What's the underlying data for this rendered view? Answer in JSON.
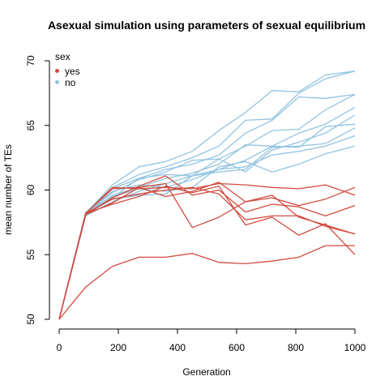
{
  "chart_data": {
    "type": "line",
    "title": "Asexual simulation using parameters of sexual equilibrium",
    "xlabel": "Generation",
    "ylabel": "mean number of TEs",
    "xlim": [
      0,
      1000
    ],
    "ylim": [
      50,
      70
    ],
    "x_ticks": [
      "0",
      "200",
      "400",
      "600",
      "800",
      "1000"
    ],
    "y_ticks": [
      "50",
      "55",
      "60",
      "65",
      "70"
    ],
    "x_tick_values": [
      0,
      200,
      400,
      600,
      800,
      1000
    ],
    "y_tick_values": [
      50,
      55,
      60,
      65,
      70
    ],
    "grid": false,
    "legend": {
      "title": "sex",
      "position": "top-left",
      "entries": [
        {
          "label": "yes",
          "color": "#d24b3e"
        },
        {
          "label": "no",
          "color": "#92c4e0"
        }
      ]
    },
    "x": [
      0,
      90,
      180,
      270,
      360,
      450,
      540,
      630,
      720,
      810,
      900,
      1000
    ],
    "groups": [
      {
        "key": "no",
        "color": "#92c4e0",
        "runs": [
          [
            50,
            58.2,
            60.4,
            61.8,
            62.2,
            63.0,
            64.6,
            66.0,
            67.7,
            67.6,
            68.9,
            69.2
          ],
          [
            50,
            58.2,
            60.2,
            61.2,
            61.8,
            62.5,
            63.4,
            65.4,
            65.5,
            67.5,
            68.6,
            69.2
          ],
          [
            50,
            58.1,
            60.1,
            60.9,
            61.6,
            62.0,
            62.7,
            64.4,
            65.4,
            67.2,
            67.1,
            67.4
          ],
          [
            50,
            58.2,
            59.8,
            60.8,
            61.4,
            62.3,
            62.4,
            63.4,
            64.6,
            64.7,
            66.2,
            67.4
          ],
          [
            50,
            58.1,
            59.6,
            60.2,
            60.9,
            61.3,
            62.0,
            63.5,
            63.4,
            64.4,
            65.1,
            66.4
          ],
          [
            50,
            58.2,
            59.4,
            60.9,
            61.2,
            61.1,
            62.4,
            61.4,
            63.1,
            63.7,
            64.4,
            65.8
          ],
          [
            50,
            58.0,
            59.1,
            59.9,
            60.5,
            61.1,
            61.6,
            62.3,
            63.4,
            63.3,
            64.9,
            65.1
          ],
          [
            50,
            58.2,
            59.9,
            60.4,
            60.2,
            60.8,
            61.6,
            61.8,
            62.7,
            63.0,
            63.4,
            64.2
          ],
          [
            50,
            58.3,
            59.5,
            60.1,
            59.9,
            60.2,
            61.8,
            62.2,
            61.4,
            62.0,
            62.8,
            63.4
          ],
          [
            50,
            58.1,
            59.3,
            59.6,
            59.7,
            61.1,
            61.4,
            61.6,
            63.3,
            63.4,
            63.6,
            64.8
          ]
        ]
      },
      {
        "key": "yes",
        "color": "#d24b3e",
        "runs": [
          [
            50,
            58.2,
            60.2,
            60.1,
            60.2,
            60.1,
            60.5,
            60.4,
            60.2,
            60.1,
            60.4,
            59.6
          ],
          [
            50,
            58.2,
            60.1,
            60.2,
            59.5,
            59.9,
            60.6,
            59.1,
            59.4,
            58.8,
            59.3,
            60.2
          ],
          [
            50,
            58.1,
            59.4,
            60.3,
            61.1,
            59.6,
            60.0,
            58.3,
            58.9,
            58.7,
            58.0,
            58.8
          ],
          [
            50,
            58.2,
            59.3,
            59.7,
            60.0,
            60.2,
            59.7,
            57.7,
            58.0,
            58.0,
            57.2,
            56.6
          ],
          [
            50,
            58.1,
            59.0,
            60.2,
            60.5,
            57.1,
            57.9,
            59.1,
            59.6,
            57.9,
            57.3,
            56.6
          ],
          [
            50,
            58.2,
            58.9,
            59.5,
            60.3,
            59.8,
            60.3,
            57.3,
            57.9,
            56.5,
            57.4,
            55.0
          ],
          [
            50,
            52.5,
            54.1,
            54.8,
            54.8,
            55.1,
            54.4,
            54.3,
            54.5,
            54.8,
            55.7,
            55.7
          ]
        ]
      }
    ]
  }
}
